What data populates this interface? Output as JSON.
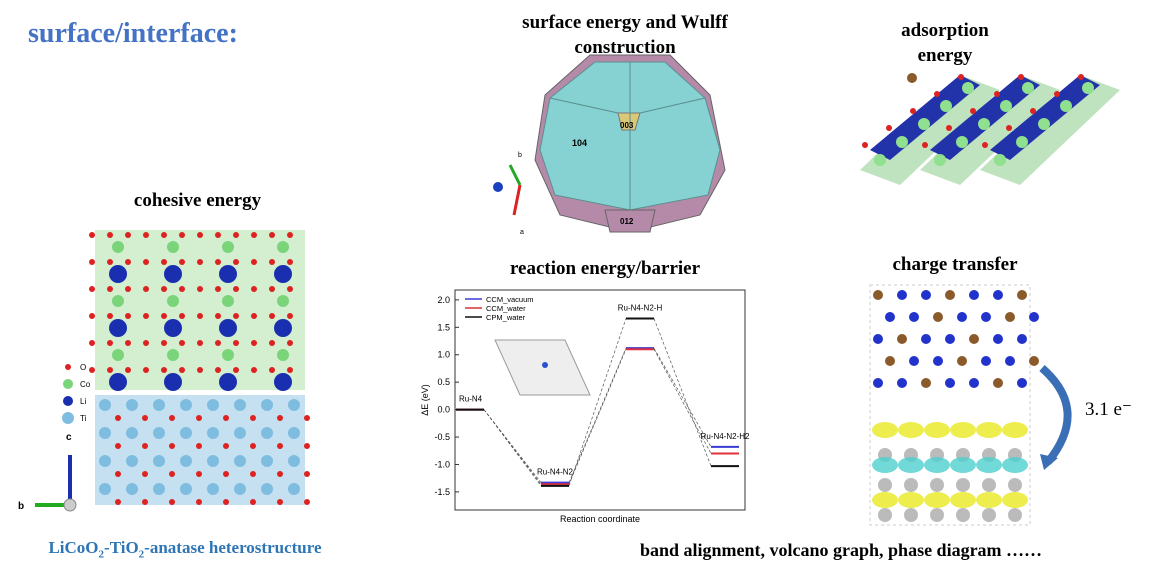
{
  "header": {
    "title": "surface/interface:"
  },
  "wulff": {
    "title": "surface energy and Wulff construction",
    "facets": [
      "104",
      "003",
      "012"
    ],
    "axes": [
      "b",
      "a"
    ]
  },
  "adsorption": {
    "title": "adsorption energy"
  },
  "cohesive": {
    "title": "cohesive energy",
    "legend": [
      "O",
      "Co",
      "Li",
      "Ti"
    ],
    "axes": [
      "c",
      "b"
    ],
    "caption": [
      "LiCoO",
      "2",
      "-TiO",
      "2",
      "-anatase heterostructure"
    ]
  },
  "charge": {
    "title": "charge transfer",
    "label": "3.1 e⁻"
  },
  "footer": {
    "text": "band alignment, volcano graph, phase diagram ……"
  },
  "chart_data": {
    "type": "levels",
    "title": "reaction energy/barrier",
    "y_label": "ΔE (eV)",
    "x_label": "Reaction coordinate",
    "categories": [
      "Ru-N4",
      "Ru-N4-N2",
      "Ru-N4-N2-H",
      "Ru-N4-N2-H2"
    ],
    "series": [
      {
        "name": "CCM_vacuum",
        "color": "#3b3bd6",
        "values": [
          0,
          -1.33,
          1.12,
          -0.68
        ]
      },
      {
        "name": "CCM_water",
        "color": "#e0303a",
        "values": [
          0,
          -1.36,
          1.1,
          -0.8
        ]
      },
      {
        "name": "CPM_water",
        "color": "#111111",
        "values": [
          0,
          -1.39,
          1.66,
          -1.03
        ]
      }
    ],
    "ylim": [
      -1.83,
      2.18
    ],
    "yticks": [
      {
        "value": -1.5,
        "label": "-1.5"
      },
      {
        "value": -1,
        "label": "-1.0"
      },
      {
        "value": -0.5,
        "label": "-0.5"
      },
      {
        "value": 0,
        "label": "0.0"
      },
      {
        "value": 0.5,
        "label": "0.5"
      },
      {
        "value": 1,
        "label": "1.0"
      },
      {
        "value": 1.5,
        "label": "1.5"
      },
      {
        "value": 2,
        "label": "2.0"
      }
    ]
  }
}
